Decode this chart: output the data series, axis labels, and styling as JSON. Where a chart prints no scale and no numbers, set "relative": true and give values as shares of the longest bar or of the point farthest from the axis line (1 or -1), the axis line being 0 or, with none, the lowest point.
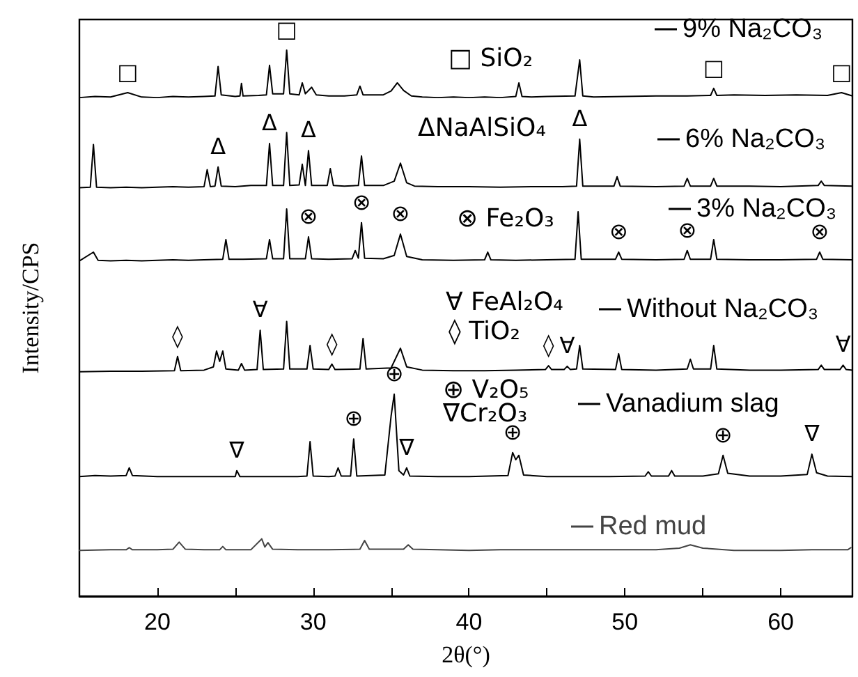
{
  "chart_data": {
    "type": "line",
    "relative": true,
    "xlabel": "2θ(°)",
    "ylabel": "Intensity/CPS",
    "tick_labels": "x",
    "legend": "right",
    "xlim": [
      15,
      64.6
    ],
    "xticks": [
      20,
      {
        "value": 25,
        "label": null
      },
      30,
      {
        "value": 35,
        "label": null
      },
      40,
      {
        "value": 45,
        "label": null
      },
      50,
      {
        "value": 55,
        "label": null
      },
      60
    ],
    "series": [
      {
        "name": "9% Na₂CO₃",
        "color": "#000000",
        "x": [
          15,
          16,
          17,
          18.1,
          19,
          20,
          21,
          22,
          23,
          23.7,
          23.9,
          24.1,
          25,
          25.3,
          25.4,
          25.5,
          26.5,
          27.0,
          27.2,
          27.4,
          28.1,
          28.3,
          28.5,
          29.1,
          29.3,
          29.5,
          29.9,
          30.2,
          31,
          32,
          32.8,
          33.0,
          33.2,
          34.5,
          35.0,
          35.4,
          35.8,
          36.3,
          37,
          38,
          39,
          40,
          41,
          42,
          43.0,
          43.2,
          43.4,
          44,
          45,
          46.8,
          47.1,
          47.3,
          48,
          50,
          52,
          54,
          55.5,
          55.7,
          55.9,
          57,
          59,
          61,
          63,
          63.9,
          64.6
        ],
        "values": [
          0.913,
          0.915,
          0.914,
          0.922,
          0.914,
          0.913,
          0.915,
          0.914,
          0.915,
          0.916,
          0.97,
          0.918,
          0.915,
          0.916,
          0.939,
          0.916,
          0.917,
          0.918,
          0.972,
          0.92,
          0.92,
          1.0,
          0.92,
          0.918,
          0.94,
          0.92,
          0.932,
          0.918,
          0.916,
          0.916,
          0.918,
          0.934,
          0.918,
          0.918,
          0.925,
          0.94,
          0.926,
          0.916,
          0.914,
          0.913,
          0.914,
          0.913,
          0.914,
          0.913,
          0.915,
          0.94,
          0.915,
          0.914,
          0.915,
          0.916,
          0.982,
          0.916,
          0.914,
          0.915,
          0.916,
          0.916,
          0.917,
          0.93,
          0.917,
          0.918,
          0.917,
          0.918,
          0.917,
          0.922,
          0.916
        ]
      },
      {
        "name": "6% Na₂CO₃",
        "color": "#000000",
        "x": [
          15,
          15.7,
          15.9,
          16.1,
          17,
          18,
          19,
          20,
          21,
          22,
          23.0,
          23.2,
          23.4,
          23.7,
          23.9,
          24.1,
          25,
          26,
          27.0,
          27.2,
          27.4,
          28.1,
          28.3,
          28.5,
          29.1,
          29.3,
          29.5,
          29.7,
          29.9,
          30.9,
          31.1,
          31.3,
          32,
          32.9,
          33.1,
          33.3,
          34.5,
          35.2,
          35.6,
          36.0,
          36.5,
          38,
          40,
          42,
          44,
          46,
          46.9,
          47.1,
          47.3,
          49.3,
          49.5,
          49.7,
          52,
          53.8,
          54.0,
          54.2,
          55.5,
          55.7,
          55.9,
          58,
          60,
          62.4,
          62.6,
          62.8,
          64.6
        ],
        "values": [
          0.748,
          0.749,
          0.827,
          0.749,
          0.748,
          0.749,
          0.748,
          0.749,
          0.75,
          0.749,
          0.75,
          0.781,
          0.75,
          0.751,
          0.786,
          0.751,
          0.75,
          0.752,
          0.752,
          0.829,
          0.752,
          0.752,
          0.849,
          0.752,
          0.753,
          0.791,
          0.752,
          0.816,
          0.752,
          0.752,
          0.783,
          0.752,
          0.751,
          0.752,
          0.806,
          0.752,
          0.752,
          0.76,
          0.793,
          0.757,
          0.751,
          0.75,
          0.75,
          0.749,
          0.75,
          0.75,
          0.751,
          0.837,
          0.751,
          0.751,
          0.768,
          0.751,
          0.75,
          0.751,
          0.765,
          0.751,
          0.751,
          0.765,
          0.751,
          0.751,
          0.75,
          0.752,
          0.76,
          0.752,
          0.751
        ]
      },
      {
        "name": "3% Na₂CO₃",
        "color": "#000000",
        "x": [
          15,
          15.9,
          16.2,
          17,
          18,
          19,
          20,
          21,
          22,
          23,
          24.2,
          24.4,
          24.6,
          25.5,
          27.0,
          27.2,
          27.4,
          28.1,
          28.3,
          28.5,
          29.5,
          29.7,
          29.9,
          31,
          32.5,
          32.7,
          32.9,
          33.1,
          33.3,
          34.5,
          35.2,
          35.6,
          36.0,
          37,
          39,
          41.0,
          41.2,
          41.4,
          43,
          45,
          46.8,
          47.0,
          47.2,
          49.4,
          49.6,
          49.8,
          52,
          53.8,
          54.0,
          54.2,
          55.5,
          55.7,
          55.9,
          58,
          60,
          62.3,
          62.5,
          62.7,
          64.6
        ],
        "values": [
          0.614,
          0.63,
          0.615,
          0.614,
          0.615,
          0.614,
          0.615,
          0.616,
          0.615,
          0.616,
          0.617,
          0.653,
          0.617,
          0.617,
          0.618,
          0.653,
          0.618,
          0.618,
          0.709,
          0.618,
          0.618,
          0.658,
          0.618,
          0.617,
          0.618,
          0.633,
          0.619,
          0.684,
          0.619,
          0.618,
          0.624,
          0.663,
          0.622,
          0.616,
          0.615,
          0.616,
          0.63,
          0.616,
          0.615,
          0.616,
          0.617,
          0.704,
          0.617,
          0.617,
          0.63,
          0.617,
          0.616,
          0.617,
          0.633,
          0.617,
          0.617,
          0.653,
          0.617,
          0.616,
          0.616,
          0.617,
          0.63,
          0.617,
          0.616
        ]
      },
      {
        "name": "Without Na₂CO₃",
        "color": "#000000",
        "x": [
          15,
          17,
          19,
          21.1,
          21.3,
          21.5,
          23.0,
          23.6,
          23.8,
          24.0,
          24.2,
          24.4,
          25.2,
          25.4,
          25.6,
          26.4,
          26.6,
          26.8,
          28.1,
          28.3,
          28.5,
          29.6,
          29.8,
          30.0,
          31,
          31.2,
          31.4,
          33.0,
          33.2,
          33.4,
          35.0,
          35.6,
          36.0,
          37,
          39,
          41,
          43,
          44.9,
          45.1,
          45.3,
          46.1,
          46.3,
          46.5,
          46.9,
          47.1,
          47.3,
          49.4,
          49.6,
          49.8,
          52,
          54.0,
          54.2,
          54.4,
          55.5,
          55.7,
          55.9,
          58,
          60,
          62.4,
          62.6,
          62.8,
          63.8,
          64.0,
          64.2,
          64.6
        ],
        "values": [
          0.411,
          0.412,
          0.412,
          0.413,
          0.439,
          0.413,
          0.414,
          0.42,
          0.449,
          0.43,
          0.449,
          0.416,
          0.414,
          0.426,
          0.414,
          0.415,
          0.487,
          0.415,
          0.416,
          0.503,
          0.416,
          0.416,
          0.459,
          0.416,
          0.415,
          0.425,
          0.415,
          0.416,
          0.472,
          0.416,
          0.418,
          0.454,
          0.42,
          0.414,
          0.413,
          0.413,
          0.414,
          0.415,
          0.422,
          0.415,
          0.415,
          0.421,
          0.415,
          0.416,
          0.459,
          0.416,
          0.415,
          0.444,
          0.415,
          0.414,
          0.416,
          0.434,
          0.416,
          0.416,
          0.459,
          0.416,
          0.414,
          0.414,
          0.415,
          0.423,
          0.415,
          0.415,
          0.423,
          0.415,
          0.414
        ]
      },
      {
        "name": "Vanadium slag",
        "color": "#000000",
        "x": [
          15,
          16,
          17,
          18.0,
          18.2,
          18.4,
          20,
          22,
          24,
          25.0,
          25.1,
          25.3,
          27,
          29,
          29.6,
          29.8,
          30.0,
          31,
          31.4,
          31.6,
          31.8,
          32.4,
          32.6,
          32.8,
          34.6,
          35.0,
          35.2,
          35.5,
          35.8,
          36.0,
          36.2,
          38,
          40,
          42.5,
          42.8,
          43.0,
          43.2,
          43.5,
          45,
          47,
          49,
          51.3,
          51.5,
          51.7,
          52.8,
          53.0,
          53.2,
          55,
          56.0,
          56.3,
          56.6,
          58,
          60,
          61.7,
          62.0,
          62.3,
          63,
          64.6
        ],
        "values": [
          0.219,
          0.221,
          0.22,
          0.221,
          0.235,
          0.221,
          0.219,
          0.219,
          0.219,
          0.219,
          0.23,
          0.219,
          0.219,
          0.219,
          0.22,
          0.283,
          0.22,
          0.219,
          0.22,
          0.235,
          0.22,
          0.22,
          0.288,
          0.22,
          0.222,
          0.33,
          0.37,
          0.23,
          0.222,
          0.235,
          0.22,
          0.219,
          0.219,
          0.221,
          0.263,
          0.25,
          0.258,
          0.222,
          0.219,
          0.219,
          0.219,
          0.22,
          0.228,
          0.22,
          0.22,
          0.23,
          0.22,
          0.22,
          0.224,
          0.258,
          0.225,
          0.22,
          0.22,
          0.223,
          0.26,
          0.226,
          0.22,
          0.219
        ]
      },
      {
        "name": "Red mud",
        "color": "#444444",
        "x": [
          15,
          17,
          18.0,
          18.2,
          18.4,
          20,
          21.0,
          21.4,
          21.8,
          23,
          24.0,
          24.2,
          24.4,
          26,
          26.7,
          26.9,
          27.1,
          27.4,
          29,
          31,
          33.0,
          33.3,
          33.6,
          35.8,
          36.1,
          36.4,
          38,
          40,
          42,
          44,
          46,
          48,
          50,
          52,
          53.5,
          54.2,
          55.0,
          57,
          60,
          62,
          64.3,
          64.5
        ],
        "values": [
          0.084,
          0.085,
          0.085,
          0.089,
          0.085,
          0.085,
          0.086,
          0.099,
          0.086,
          0.085,
          0.085,
          0.091,
          0.085,
          0.085,
          0.105,
          0.09,
          0.098,
          0.086,
          0.085,
          0.085,
          0.086,
          0.102,
          0.086,
          0.086,
          0.094,
          0.086,
          0.085,
          0.084,
          0.085,
          0.085,
          0.085,
          0.085,
          0.085,
          0.085,
          0.088,
          0.094,
          0.088,
          0.084,
          0.084,
          0.085,
          0.085,
          0.089
        ]
      }
    ],
    "annotations": [
      "□ SiO₂",
      "ΔNaAlSiO₄",
      "⊗ Fe₂O₃",
      "∀ FeAl₂O₄",
      "◊ TiO₂",
      "⊕ V₂O₅",
      "∇Cr₂O₃",
      {
        "text": "□",
        "x": 18.1,
        "y": 0.922
      },
      {
        "text": "□",
        "x": 28.3,
        "y": 1.0
      },
      {
        "text": "□",
        "x": 55.7,
        "y": 0.93
      },
      {
        "text": "□",
        "x": 63.9,
        "y": 0.922
      },
      {
        "text": "Δ",
        "x": 23.9,
        "y": 0.786
      },
      {
        "text": "Δ",
        "x": 27.2,
        "y": 0.829
      },
      {
        "text": "Δ",
        "x": 29.7,
        "y": 0.816
      },
      {
        "text": "Δ",
        "x": 47.1,
        "y": 0.837
      },
      {
        "text": "⊗",
        "x": 29.7,
        "y": 0.658
      },
      {
        "text": "⊗",
        "x": 33.1,
        "y": 0.684
      },
      {
        "text": "⊗",
        "x": 35.6,
        "y": 0.663
      },
      {
        "text": "⊗",
        "x": 49.6,
        "y": 0.63
      },
      {
        "text": "⊗",
        "x": 54.0,
        "y": 0.633
      },
      {
        "text": "⊗",
        "x": 62.5,
        "y": 0.63
      },
      {
        "text": "◊",
        "x": 21.3,
        "y": 0.439
      },
      {
        "text": "∀",
        "x": 26.6,
        "y": 0.487
      },
      {
        "text": "◊",
        "x": 31.2,
        "y": 0.425
      },
      {
        "text": "◊",
        "x": 45.1,
        "y": 0.422
      },
      {
        "text": "∀",
        "x": 46.3,
        "y": 0.421
      },
      {
        "text": "∀",
        "x": 64.0,
        "y": 0.423
      },
      {
        "text": "∇",
        "x": 25.1,
        "y": 0.23
      },
      {
        "text": "⊕",
        "x": 32.6,
        "y": 0.288
      },
      {
        "text": "⊕",
        "x": 35.2,
        "y": 0.37
      },
      {
        "text": "∇",
        "x": 36.0,
        "y": 0.235
      },
      {
        "text": "⊕",
        "x": 42.8,
        "y": 0.263
      },
      {
        "text": "⊕",
        "x": 56.3,
        "y": 0.258
      },
      {
        "text": "∇",
        "x": 62.0,
        "y": 0.26
      }
    ]
  }
}
